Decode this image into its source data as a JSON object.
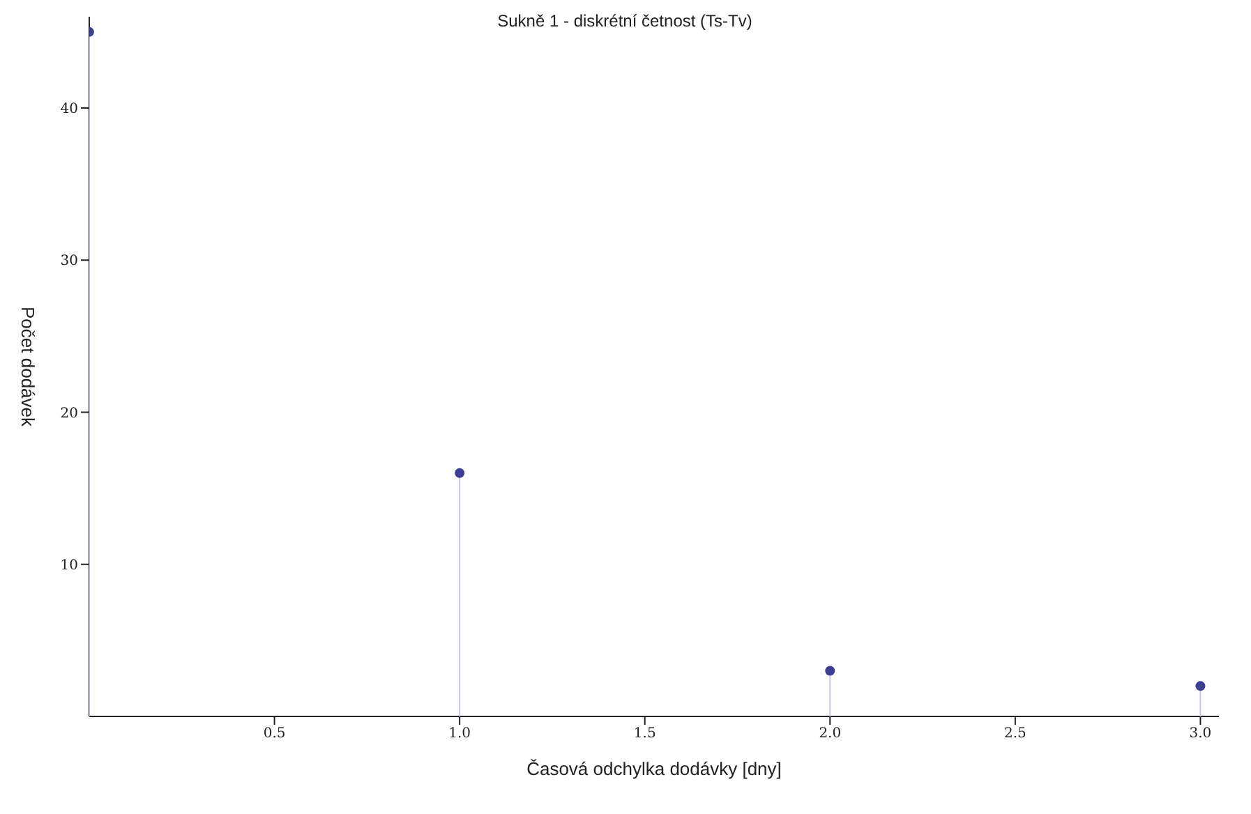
{
  "chart_data": {
    "type": "lollipop",
    "title": "Sukně 1 - diskrétní četnost (Ts-Tv)",
    "xlabel": "Časová odchylka dodávky [dny]",
    "ylabel": "Počet dodávek",
    "x": [
      0,
      1,
      2,
      3
    ],
    "values": [
      45,
      16,
      3,
      2
    ],
    "color": "#3d3d94",
    "xlim": [
      0,
      3.05
    ],
    "xticks": [
      0.5,
      {
        "value": 1,
        "label": "1.0"
      },
      1.5,
      {
        "value": 2,
        "label": "2.0"
      },
      2.5,
      {
        "value": 3,
        "label": "3.0"
      }
    ],
    "ylim": [
      0,
      46
    ],
    "yticks": [
      10,
      20,
      30,
      40
    ],
    "marker": "circle"
  }
}
